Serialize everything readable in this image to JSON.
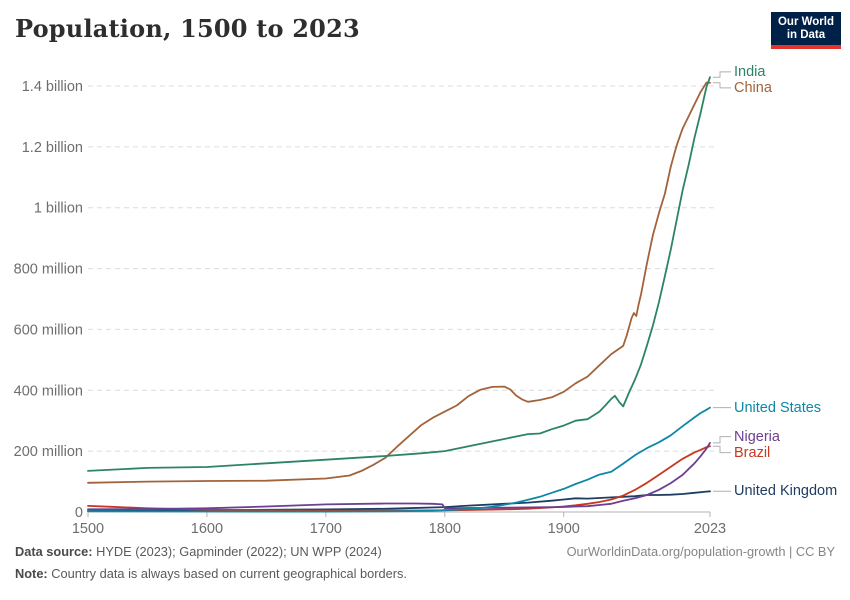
{
  "header": {
    "title": "Population, 1500 to 2023",
    "logo": {
      "line1": "Our World",
      "line2": "in Data"
    }
  },
  "chart_data": {
    "type": "line",
    "title": "Population, 1500 to 2023",
    "x_range": [
      1500,
      2023
    ],
    "y_range_millions": [
      0,
      1400
    ],
    "grid": "horizontal-dashed",
    "legend_position": "right-of-line-ends",
    "x_ticks": [
      {
        "label": "1500",
        "year": 1500
      },
      {
        "label": "1600",
        "year": 1600
      },
      {
        "label": "1700",
        "year": 1700
      },
      {
        "label": "1800",
        "year": 1800
      },
      {
        "label": "1900",
        "year": 1900
      },
      {
        "label": "2023",
        "year": 2023
      }
    ],
    "y_ticks": [
      {
        "label": "1.4 billion",
        "value_millions": 1400
      },
      {
        "label": "1.2 billion",
        "value_millions": 1200
      },
      {
        "label": "1 billion",
        "value_millions": 1000
      },
      {
        "label": "800 million",
        "value_millions": 800
      },
      {
        "label": "600 million",
        "value_millions": 600
      },
      {
        "label": "400 million",
        "value_millions": 400
      },
      {
        "label": "200 million",
        "value_millions": 200
      },
      {
        "label": "0",
        "value_millions": 0
      }
    ],
    "series": [
      {
        "name": "India",
        "color": "#2C8465",
        "points": [
          [
            1500,
            135
          ],
          [
            1550,
            145
          ],
          [
            1600,
            148
          ],
          [
            1650,
            160
          ],
          [
            1700,
            172
          ],
          [
            1750,
            184
          ],
          [
            1780,
            193
          ],
          [
            1800,
            200
          ],
          [
            1820,
            216
          ],
          [
            1840,
            232
          ],
          [
            1850,
            240
          ],
          [
            1860,
            248
          ],
          [
            1870,
            256
          ],
          [
            1880,
            258
          ],
          [
            1890,
            272
          ],
          [
            1900,
            284
          ],
          [
            1910,
            300
          ],
          [
            1920,
            305
          ],
          [
            1930,
            330
          ],
          [
            1935,
            350
          ],
          [
            1940,
            372
          ],
          [
            1943,
            382
          ],
          [
            1947,
            360
          ],
          [
            1950,
            347
          ],
          [
            1955,
            393
          ],
          [
            1960,
            436
          ],
          [
            1965,
            485
          ],
          [
            1970,
            548
          ],
          [
            1975,
            613
          ],
          [
            1980,
            689
          ],
          [
            1985,
            774
          ],
          [
            1990,
            863
          ],
          [
            1995,
            960
          ],
          [
            2000,
            1057
          ],
          [
            2005,
            1140
          ],
          [
            2010,
            1230
          ],
          [
            2015,
            1310
          ],
          [
            2020,
            1396
          ],
          [
            2023,
            1429
          ]
        ]
      },
      {
        "name": "China",
        "color": "#A2633B",
        "points": [
          [
            1500,
            96
          ],
          [
            1550,
            100
          ],
          [
            1600,
            102
          ],
          [
            1650,
            103
          ],
          [
            1700,
            110
          ],
          [
            1720,
            120
          ],
          [
            1730,
            135
          ],
          [
            1740,
            155
          ],
          [
            1750,
            178
          ],
          [
            1760,
            215
          ],
          [
            1770,
            250
          ],
          [
            1780,
            285
          ],
          [
            1790,
            310
          ],
          [
            1800,
            330
          ],
          [
            1810,
            350
          ],
          [
            1820,
            381
          ],
          [
            1830,
            402
          ],
          [
            1840,
            411
          ],
          [
            1850,
            412
          ],
          [
            1855,
            403
          ],
          [
            1860,
            383
          ],
          [
            1865,
            370
          ],
          [
            1870,
            362
          ],
          [
            1880,
            368
          ],
          [
            1890,
            377
          ],
          [
            1900,
            395
          ],
          [
            1910,
            423
          ],
          [
            1920,
            445
          ],
          [
            1930,
            482
          ],
          [
            1940,
            519
          ],
          [
            1950,
            546
          ],
          [
            1953,
            580
          ],
          [
            1957,
            637
          ],
          [
            1959,
            654
          ],
          [
            1961,
            644
          ],
          [
            1963,
            682
          ],
          [
            1965,
            715
          ],
          [
            1970,
            818
          ],
          [
            1975,
            910
          ],
          [
            1980,
            982
          ],
          [
            1985,
            1045
          ],
          [
            1990,
            1135
          ],
          [
            1995,
            1205
          ],
          [
            2000,
            1260
          ],
          [
            2005,
            1300
          ],
          [
            2010,
            1340
          ],
          [
            2015,
            1380
          ],
          [
            2020,
            1411
          ],
          [
            2023,
            1411
          ]
        ]
      },
      {
        "name": "United States",
        "color": "#0E87A6",
        "points": [
          [
            1500,
            2.5
          ],
          [
            1600,
            1.8
          ],
          [
            1700,
            1.2
          ],
          [
            1750,
            2
          ],
          [
            1790,
            4
          ],
          [
            1800,
            6
          ],
          [
            1810,
            8
          ],
          [
            1820,
            10
          ],
          [
            1830,
            13
          ],
          [
            1840,
            17
          ],
          [
            1850,
            24
          ],
          [
            1860,
            31
          ],
          [
            1870,
            40
          ],
          [
            1880,
            50
          ],
          [
            1890,
            63
          ],
          [
            1900,
            76
          ],
          [
            1910,
            92
          ],
          [
            1920,
            106
          ],
          [
            1930,
            123
          ],
          [
            1940,
            132
          ],
          [
            1950,
            159
          ],
          [
            1960,
            187
          ],
          [
            1970,
            210
          ],
          [
            1980,
            229
          ],
          [
            1990,
            252
          ],
          [
            2000,
            282
          ],
          [
            2010,
            311
          ],
          [
            2015,
            325
          ],
          [
            2020,
            336
          ],
          [
            2023,
            343
          ]
        ]
      },
      {
        "name": "Nigeria",
        "color": "#6D3E91",
        "points": [
          [
            1500,
            9
          ],
          [
            1550,
            10
          ],
          [
            1600,
            12
          ],
          [
            1650,
            18
          ],
          [
            1700,
            25
          ],
          [
            1750,
            28
          ],
          [
            1775,
            28
          ],
          [
            1790,
            27
          ],
          [
            1798,
            25
          ],
          [
            1800,
            12
          ],
          [
            1820,
            13
          ],
          [
            1850,
            14
          ],
          [
            1880,
            15.5
          ],
          [
            1900,
            16.5
          ],
          [
            1910,
            18
          ],
          [
            1920,
            19
          ],
          [
            1930,
            23
          ],
          [
            1940,
            27
          ],
          [
            1950,
            37
          ],
          [
            1960,
            45
          ],
          [
            1970,
            56
          ],
          [
            1980,
            73
          ],
          [
            1990,
            95
          ],
          [
            2000,
            122
          ],
          [
            2010,
            160
          ],
          [
            2015,
            183
          ],
          [
            2020,
            208
          ],
          [
            2023,
            227
          ]
        ]
      },
      {
        "name": "Brazil",
        "color": "#C6391F",
        "points": [
          [
            1500,
            20
          ],
          [
            1520,
            17
          ],
          [
            1550,
            12
          ],
          [
            1600,
            8
          ],
          [
            1650,
            5.5
          ],
          [
            1700,
            4.5
          ],
          [
            1750,
            4.5
          ],
          [
            1800,
            5.5
          ],
          [
            1820,
            6.5
          ],
          [
            1850,
            8.5
          ],
          [
            1870,
            11
          ],
          [
            1890,
            15
          ],
          [
            1900,
            18
          ],
          [
            1910,
            22
          ],
          [
            1920,
            27
          ],
          [
            1930,
            33
          ],
          [
            1940,
            41
          ],
          [
            1950,
            54
          ],
          [
            1960,
            73
          ],
          [
            1970,
            96
          ],
          [
            1980,
            122
          ],
          [
            1990,
            149
          ],
          [
            2000,
            175
          ],
          [
            2010,
            196
          ],
          [
            2015,
            204
          ],
          [
            2020,
            213
          ],
          [
            2023,
            216
          ]
        ]
      },
      {
        "name": "United Kingdom",
        "color": "#1D3D63",
        "points": [
          [
            1500,
            3.9
          ],
          [
            1550,
            4.8
          ],
          [
            1600,
            6.2
          ],
          [
            1650,
            7.3
          ],
          [
            1700,
            8.6
          ],
          [
            1750,
            10.5
          ],
          [
            1800,
            16
          ],
          [
            1820,
            21
          ],
          [
            1850,
            27
          ],
          [
            1870,
            31
          ],
          [
            1890,
            37
          ],
          [
            1900,
            41
          ],
          [
            1910,
            45
          ],
          [
            1920,
            44
          ],
          [
            1930,
            46
          ],
          [
            1940,
            48
          ],
          [
            1950,
            50
          ],
          [
            1960,
            52
          ],
          [
            1970,
            56
          ],
          [
            1980,
            56
          ],
          [
            1990,
            57
          ],
          [
            2000,
            59
          ],
          [
            2010,
            63
          ],
          [
            2020,
            67
          ],
          [
            2023,
            68
          ]
        ]
      }
    ]
  },
  "footer": {
    "datasource_label": "Data source:",
    "datasource_text": " HYDE (2023); Gapminder (2022); UN WPP (2024)",
    "note_label": "Note:",
    "note_text": " Country data is always based on current geographical borders.",
    "link": "OurWorldinData.org/population-growth | CC BY"
  }
}
